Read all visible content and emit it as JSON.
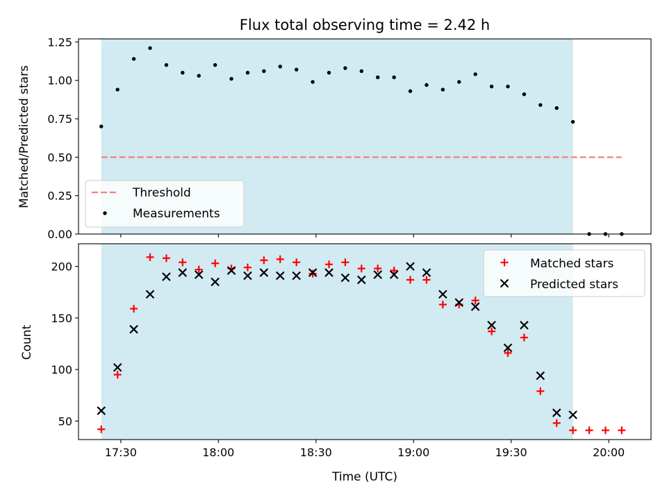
{
  "chart_data": {
    "type": "scatter",
    "title": "Flux total observing time = 2.42 h",
    "xlabel": "Time (UTC)",
    "x_tick_labels": [
      "17:30",
      "18:00",
      "18:30",
      "19:00",
      "19:30",
      "20:00"
    ],
    "x_tick_minutes": [
      1050,
      1080,
      1110,
      1140,
      1170,
      1200
    ],
    "xlim_minutes": [
      1037,
      1213
    ],
    "shaded_span_minutes": [
      1044,
      1189
    ],
    "shade_color": "#add8e6",
    "panels": [
      {
        "ylabel": "Matched/Predicted stars",
        "ylim": [
          0,
          1.27
        ],
        "y_ticks": [
          "0.00",
          "0.25",
          "0.50",
          "0.75",
          "1.00",
          "1.25"
        ],
        "legend": {
          "position": "lower-left",
          "entries": [
            "Threshold",
            "Measurements"
          ]
        },
        "threshold": {
          "name": "Threshold",
          "value": 0.5,
          "x_range_minutes": [
            1044,
            1204
          ],
          "color": "#f08080",
          "style": "dashed"
        },
        "series": [
          {
            "name": "Measurements",
            "marker": "dot",
            "color": "#000000",
            "x_minutes": [
              1044,
              1049,
              1054,
              1059,
              1064,
              1069,
              1074,
              1079,
              1084,
              1089,
              1094,
              1099,
              1104,
              1109,
              1114,
              1119,
              1124,
              1129,
              1134,
              1139,
              1144,
              1149,
              1154,
              1159,
              1164,
              1169,
              1174,
              1179,
              1184,
              1189,
              1194,
              1199,
              1204
            ],
            "y": [
              0.7,
              0.94,
              1.14,
              1.21,
              1.1,
              1.05,
              1.03,
              1.1,
              1.01,
              1.05,
              1.06,
              1.09,
              1.07,
              0.99,
              1.05,
              1.08,
              1.06,
              1.02,
              1.02,
              0.93,
              0.97,
              0.94,
              0.99,
              1.04,
              0.96,
              0.96,
              0.91,
              0.84,
              0.82,
              0.73,
              0.0,
              0.0,
              0.0
            ]
          }
        ]
      },
      {
        "ylabel": "Count",
        "ylim": [
          32,
          222
        ],
        "y_ticks": [
          "50",
          "100",
          "150",
          "200"
        ],
        "legend": {
          "position": "upper-right",
          "entries": [
            "Matched stars",
            "Predicted stars"
          ]
        },
        "series": [
          {
            "name": "Matched stars",
            "marker": "plus",
            "color": "#ff0000",
            "x_minutes": [
              1044,
              1049,
              1054,
              1059,
              1064,
              1069,
              1074,
              1079,
              1084,
              1089,
              1094,
              1099,
              1104,
              1109,
              1114,
              1119,
              1124,
              1129,
              1134,
              1139,
              1144,
              1149,
              1154,
              1159,
              1164,
              1169,
              1174,
              1179,
              1184,
              1189,
              1194,
              1199,
              1204
            ],
            "y": [
              42,
              95,
              159,
              209,
              208,
              204,
              197,
              203,
              198,
              199,
              206,
              207,
              204,
              193,
              202,
              204,
              198,
              198,
              196,
              187,
              187,
              163,
              163,
              167,
              137,
              116,
              131,
              79,
              48,
              41,
              41,
              41,
              41
            ]
          },
          {
            "name": "Predicted stars",
            "marker": "x",
            "color": "#000000",
            "x_minutes": [
              1044,
              1049,
              1054,
              1059,
              1064,
              1069,
              1074,
              1079,
              1084,
              1089,
              1094,
              1099,
              1104,
              1109,
              1114,
              1119,
              1124,
              1129,
              1134,
              1139,
              1144,
              1149,
              1154,
              1159,
              1164,
              1169,
              1174,
              1179,
              1184,
              1189
            ],
            "y": [
              60,
              102,
              139,
              173,
              190,
              194,
              192,
              185,
              196,
              191,
              194,
              191,
              191,
              194,
              194,
              189,
              187,
              192,
              192,
              200,
              194,
              173,
              165,
              161,
              143,
              121,
              143,
              94,
              58,
              56
            ]
          }
        ]
      }
    ]
  }
}
